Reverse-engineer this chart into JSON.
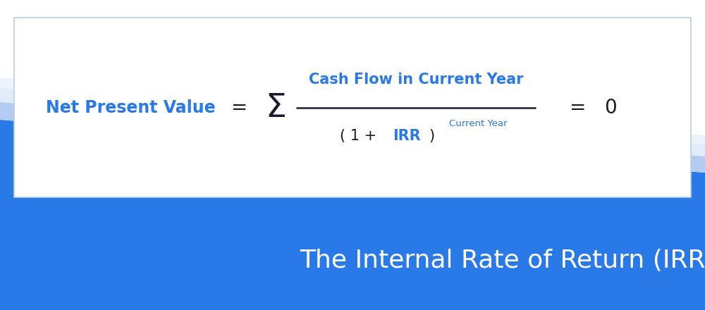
{
  "bg_color_white": "#ffffff",
  "bg_color_blue": "#2979e8",
  "stripe_light": "#a8c4f0",
  "stripe_lighter": "#d0e2f8",
  "box_border_color": "#b8d0e8",
  "formula_blue": "#2979e8",
  "formula_dark": "#1a1a2e",
  "white_text": "#ffffff",
  "title_text": "The Internal Rate of Return (IRR)",
  "title_fontsize": 26,
  "npv_text": "Net Present Value",
  "numerator_text": "Cash Flow in Current Year",
  "denom_prefix": "( 1 +",
  "denom_irr": "IRR",
  "denom_suffix": ")",
  "superscript_text": "Current Year",
  "equals1": "=",
  "equals2": "=",
  "zero_text": "0"
}
